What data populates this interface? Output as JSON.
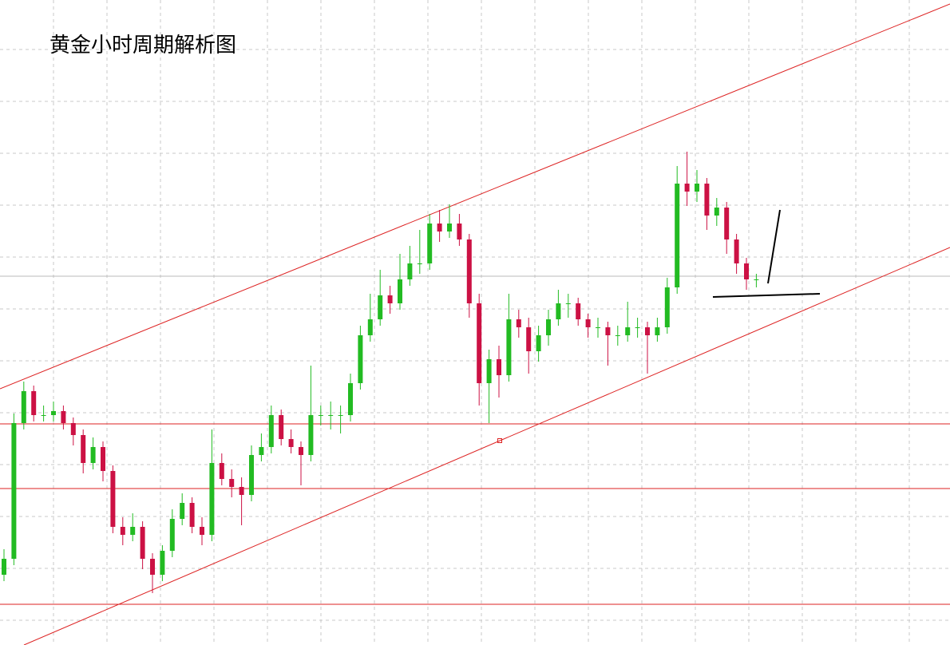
{
  "chart_data": {
    "type": "candlestick",
    "title": "黄金小时周期解析图",
    "ylim": [
      0,
      808
    ],
    "up_color": "#22bb22",
    "down_color": "#cc1144",
    "open": [
      88,
      108,
      278,
      318,
      288,
      288,
      293,
      278,
      263,
      228,
      248,
      218,
      148,
      138,
      148,
      108,
      88,
      118,
      158,
      178,
      148,
      138,
      228,
      208,
      198,
      188,
      238,
      248,
      288,
      258,
      248,
      238,
      288,
      288,
      288,
      288,
      328,
      388,
      408,
      438,
      428,
      458,
      478,
      478,
      528,
      518,
      528,
      508,
      428,
      328,
      358,
      338,
      408,
      398,
      368,
      388,
      408,
      428,
      428,
      408,
      398,
      398,
      388,
      388,
      398,
      398,
      388,
      398,
      448,
      578,
      568,
      578,
      538,
      548,
      508,
      478,
      458
    ],
    "high": [
      120,
      290,
      330,
      325,
      300,
      305,
      300,
      285,
      270,
      260,
      255,
      225,
      160,
      165,
      155,
      115,
      125,
      170,
      190,
      185,
      160,
      270,
      240,
      220,
      210,
      250,
      265,
      300,
      295,
      270,
      255,
      350,
      300,
      305,
      300,
      340,
      400,
      440,
      470,
      450,
      490,
      500,
      520,
      540,
      545,
      552,
      540,
      515,
      440,
      370,
      375,
      440,
      420,
      410,
      400,
      420,
      445,
      440,
      435,
      415,
      410,
      405,
      400,
      430,
      410,
      405,
      410,
      460,
      600,
      618,
      595,
      585,
      560,
      555,
      515,
      485,
      465
    ],
    "low": [
      80,
      100,
      270,
      280,
      280,
      280,
      270,
      250,
      215,
      220,
      205,
      140,
      125,
      130,
      95,
      65,
      80,
      110,
      150,
      140,
      125,
      130,
      200,
      185,
      150,
      180,
      230,
      240,
      250,
      240,
      200,
      230,
      275,
      270,
      265,
      280,
      320,
      380,
      400,
      415,
      420,
      450,
      465,
      470,
      505,
      510,
      500,
      410,
      300,
      278,
      310,
      330,
      385,
      340,
      355,
      375,
      400,
      410,
      400,
      385,
      385,
      350,
      375,
      380,
      385,
      340,
      380,
      390,
      440,
      550,
      555,
      520,
      525,
      490,
      465,
      445,
      448
    ],
    "close": [
      108,
      278,
      318,
      288,
      288,
      293,
      278,
      263,
      228,
      248,
      218,
      148,
      138,
      148,
      108,
      88,
      118,
      158,
      178,
      148,
      138,
      228,
      208,
      198,
      188,
      238,
      248,
      288,
      258,
      248,
      238,
      288,
      288,
      288,
      288,
      328,
      388,
      408,
      438,
      428,
      458,
      478,
      478,
      528,
      518,
      528,
      508,
      428,
      328,
      358,
      338,
      408,
      398,
      368,
      388,
      408,
      428,
      428,
      408,
      398,
      398,
      388,
      388,
      398,
      398,
      388,
      398,
      448,
      578,
      568,
      578,
      538,
      548,
      508,
      478,
      458,
      458
    ],
    "levels": [
      277,
      196,
      51
    ],
    "level_color": "#dd2222"
  }
}
